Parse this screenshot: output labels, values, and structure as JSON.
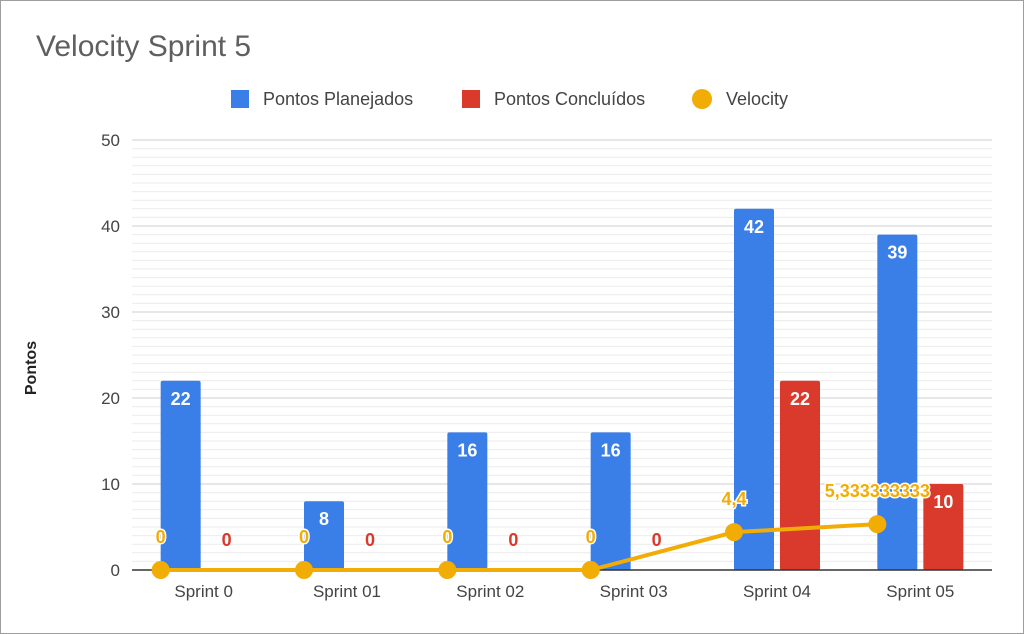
{
  "chart_data": {
    "type": "bar",
    "title": "Velocity Sprint 5",
    "xlabel": "",
    "ylabel": "Pontos",
    "ylim": [
      0,
      50
    ],
    "yticks": [
      0,
      10,
      20,
      30,
      40,
      50
    ],
    "grid": true,
    "legend_position": "top",
    "categories": [
      "Sprint 0",
      "Sprint 01",
      "Sprint 02",
      "Sprint 03",
      "Sprint 04",
      "Sprint 05"
    ],
    "series": [
      {
        "name": "Pontos Planejados",
        "kind": "bar",
        "color": "#3a7ee8",
        "values": [
          22,
          8,
          16,
          16,
          42,
          39
        ],
        "labels": [
          "22",
          "8",
          "16",
          "16",
          "42",
          "39"
        ]
      },
      {
        "name": "Pontos Concluídos",
        "kind": "bar",
        "color": "#d93a2b",
        "values": [
          0,
          0,
          0,
          0,
          22,
          10
        ],
        "labels": [
          "0",
          "0",
          "0",
          "0",
          "22",
          "10"
        ]
      },
      {
        "name": "Velocity",
        "kind": "line",
        "color": "#f2ac06",
        "values": [
          0,
          0,
          0,
          0,
          4.4,
          5.333333333
        ],
        "labels": [
          "0",
          "0",
          "0",
          "0",
          "4,4",
          "5,333333333"
        ]
      }
    ]
  }
}
